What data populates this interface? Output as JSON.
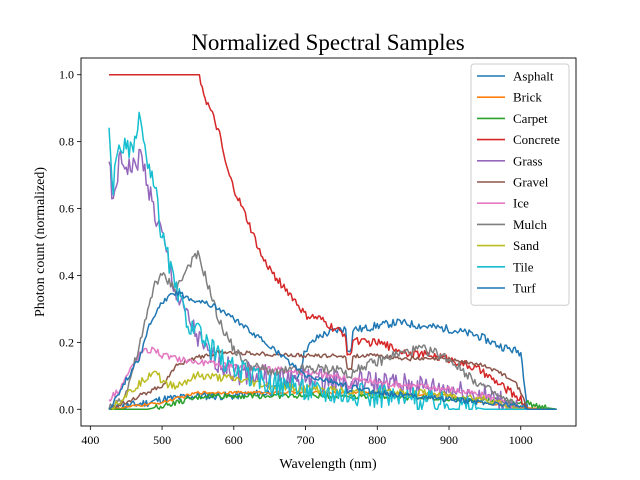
{
  "chart_data": {
    "type": "line",
    "title": "Normalized Spectral Samples",
    "xlabel": "Wavelength (nm)",
    "ylabel": "Photon count (normalized)",
    "xlim": [
      387,
      1077
    ],
    "ylim": [
      -0.05,
      1.05
    ],
    "xticks": [
      400,
      500,
      600,
      700,
      800,
      900,
      1000
    ],
    "yticks": [
      0.0,
      0.2,
      0.4,
      0.6,
      0.8,
      1.0
    ],
    "xtick_labels": [
      "400",
      "500",
      "600",
      "700",
      "800",
      "900",
      "1000"
    ],
    "ytick_labels": [
      "0.0",
      "0.2",
      "0.4",
      "0.6",
      "0.8",
      "1.0"
    ],
    "grid": false,
    "legend": "upper right",
    "series": [
      {
        "name": "Asphalt",
        "color": "#1f77b4",
        "noise": 0.012,
        "x": [
          426,
          450,
          480,
          500,
          550,
          600,
          650,
          690,
          700,
          720,
          750,
          780,
          800,
          830,
          860,
          900,
          940,
          970,
          1000,
          1010,
          1050
        ],
        "y": [
          0.0,
          0.01,
          0.02,
          0.03,
          0.04,
          0.04,
          0.05,
          0.1,
          0.18,
          0.22,
          0.24,
          0.24,
          0.25,
          0.26,
          0.25,
          0.24,
          0.22,
          0.19,
          0.17,
          0.0,
          0.0
        ]
      },
      {
        "name": "Brick",
        "color": "#ff7f0e",
        "noise": 0.004,
        "x": [
          426,
          500,
          550,
          600,
          700,
          800,
          900,
          950,
          1000,
          1050
        ],
        "y": [
          0.0,
          0.02,
          0.05,
          0.05,
          0.05,
          0.05,
          0.04,
          0.02,
          0.005,
          0.0
        ]
      },
      {
        "name": "Carpet",
        "color": "#2ca02c",
        "noise": 0.008,
        "x": [
          426,
          480,
          500,
          520,
          560,
          600,
          700,
          800,
          900,
          950,
          1000,
          1010,
          1020,
          1050
        ],
        "y": [
          0.0,
          0.0,
          0.01,
          0.02,
          0.04,
          0.04,
          0.04,
          0.04,
          0.03,
          0.03,
          0.02,
          0.02,
          0.01,
          0.0
        ]
      },
      {
        "name": "Concrete",
        "color": "#d62728",
        "noise": 0.012,
        "x": [
          426,
          552,
          560,
          570,
          580,
          590,
          600,
          620,
          640,
          660,
          680,
          700,
          720,
          740,
          760,
          780,
          800,
          840,
          880,
          900,
          940,
          960,
          980,
          1000,
          1010,
          1050
        ],
        "y": [
          1.0,
          1.0,
          0.93,
          0.88,
          0.82,
          0.72,
          0.66,
          0.56,
          0.45,
          0.39,
          0.34,
          0.28,
          0.27,
          0.24,
          0.22,
          0.2,
          0.2,
          0.17,
          0.16,
          0.15,
          0.12,
          0.09,
          0.06,
          0.03,
          0.0,
          0.0
        ]
      },
      {
        "name": "Grass",
        "color": "#9467bd",
        "noise": 0.035,
        "x": [
          426,
          432,
          440,
          460,
          470,
          480,
          490,
          500,
          520,
          560,
          600,
          700,
          800,
          900,
          950,
          1000,
          1050
        ],
        "y": [
          0.74,
          0.6,
          0.74,
          0.72,
          0.76,
          0.68,
          0.58,
          0.52,
          0.34,
          0.17,
          0.11,
          0.09,
          0.08,
          0.06,
          0.04,
          0.0,
          0.0
        ]
      },
      {
        "name": "Gravel",
        "color": "#8c564b",
        "noise": 0.006,
        "x": [
          426,
          500,
          520,
          540,
          560,
          580,
          600,
          700,
          760,
          800,
          850,
          900,
          950,
          990,
          1000,
          1010,
          1050
        ],
        "y": [
          0.0,
          0.07,
          0.13,
          0.15,
          0.16,
          0.17,
          0.17,
          0.16,
          0.16,
          0.16,
          0.15,
          0.15,
          0.13,
          0.09,
          0.05,
          0.0,
          0.0
        ]
      },
      {
        "name": "Ice",
        "color": "#e377c2",
        "noise": 0.01,
        "x": [
          426,
          440,
          470,
          490,
          500,
          550,
          600,
          650,
          700,
          800,
          850,
          900,
          950,
          1000,
          1050
        ],
        "y": [
          0.03,
          0.06,
          0.17,
          0.18,
          0.16,
          0.14,
          0.13,
          0.12,
          0.11,
          0.08,
          0.07,
          0.06,
          0.04,
          0.0,
          0.0
        ]
      },
      {
        "name": "Mulch",
        "color": "#7f7f7f",
        "noise": 0.015,
        "x": [
          426,
          450,
          470,
          490,
          500,
          520,
          540,
          550,
          560,
          580,
          600,
          620,
          660,
          700,
          740,
          760,
          800,
          820,
          840,
          860,
          880,
          900,
          940,
          960,
          1000,
          1050
        ],
        "y": [
          0.0,
          0.05,
          0.2,
          0.38,
          0.4,
          0.36,
          0.44,
          0.46,
          0.4,
          0.26,
          0.18,
          0.13,
          0.11,
          0.12,
          0.12,
          0.12,
          0.14,
          0.16,
          0.17,
          0.18,
          0.17,
          0.15,
          0.08,
          0.05,
          0.0,
          0.0
        ]
      },
      {
        "name": "Sand",
        "color": "#bcbd22",
        "noise": 0.012,
        "x": [
          426,
          460,
          480,
          490,
          500,
          520,
          550,
          600,
          650,
          700,
          800,
          850,
          900,
          950,
          980,
          1000,
          1050
        ],
        "y": [
          0.0,
          0.06,
          0.1,
          0.12,
          0.08,
          0.07,
          0.1,
          0.09,
          0.07,
          0.06,
          0.05,
          0.05,
          0.04,
          0.03,
          0.01,
          0.0,
          0.0
        ]
      },
      {
        "name": "Tile",
        "color": "#17becf",
        "noise": 0.035,
        "x": [
          426,
          432,
          440,
          460,
          470,
          480,
          490,
          500,
          510,
          520,
          540,
          560,
          580,
          600,
          650,
          700,
          800,
          900,
          950,
          1050
        ],
        "y": [
          0.82,
          0.66,
          0.8,
          0.76,
          0.88,
          0.72,
          0.66,
          0.52,
          0.44,
          0.35,
          0.25,
          0.2,
          0.16,
          0.12,
          0.08,
          0.06,
          0.04,
          0.02,
          0.0,
          0.0
        ]
      },
      {
        "name": "Turf",
        "color": "#1f77b4",
        "noise": 0.008,
        "x": [
          426,
          470,
          480,
          500,
          520,
          540,
          560,
          580,
          600,
          650,
          700,
          800,
          900,
          950,
          1000,
          1010,
          1050
        ],
        "y": [
          0.0,
          0.16,
          0.24,
          0.32,
          0.35,
          0.33,
          0.32,
          0.3,
          0.27,
          0.19,
          0.1,
          0.05,
          0.03,
          0.02,
          0.01,
          0.0,
          0.0
        ]
      }
    ]
  }
}
